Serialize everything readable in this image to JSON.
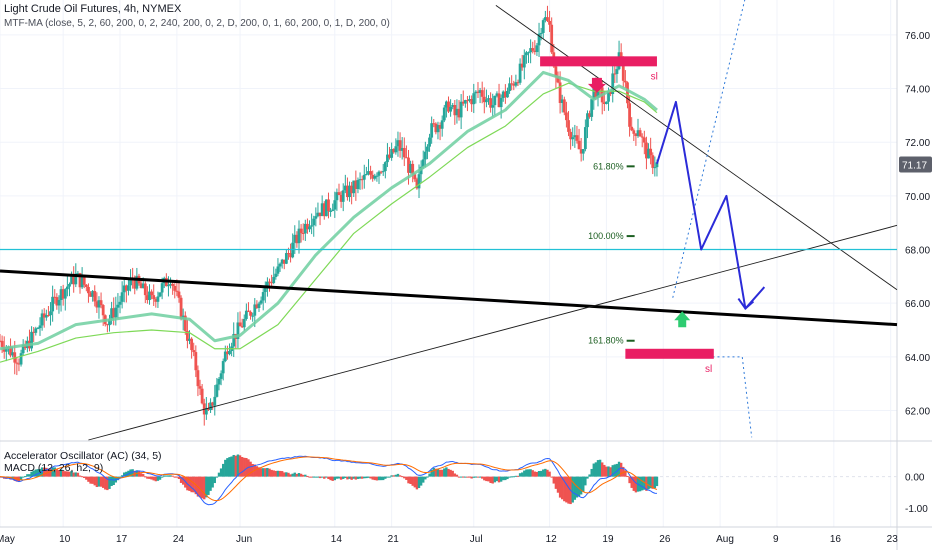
{
  "header": {
    "title": "Light Crude Oil Futures, 4h, NYMEX",
    "indicator": "MTF-MA (close, 5, 2, 60, 200, 0, 2, 240, 200, 0, 2, D, 200, 0, 1, 60, 200, 0, 1, D, 200, 0)"
  },
  "subpanel": {
    "ac_label": "Accelerator Oscillator (AC) (34, 5)",
    "macd_label": "MACD (12, 26, h2, 9)"
  },
  "chart_data": {
    "type": "candlestick",
    "title": "Light Crude Oil Futures, 4h, NYMEX",
    "x_tick_labels": [
      "May",
      "10",
      "17",
      "24",
      "Jun",
      "14",
      "21",
      "Jul",
      "12",
      "19",
      "26",
      "Aug",
      "9",
      "16",
      "23"
    ],
    "y_tick_labels": [
      "62.00",
      "64.00",
      "66.00",
      "68.00",
      "70.00",
      "72.00",
      "74.00",
      "76.00"
    ],
    "ylim": [
      60.9,
      77.3
    ],
    "current_price": "71.17",
    "price_path": [
      [
        0,
        64.6
      ],
      [
        3,
        63.9
      ],
      [
        6,
        65.1
      ],
      [
        9,
        66.2
      ],
      [
        12,
        67.0
      ],
      [
        15,
        66.3
      ],
      [
        17,
        65.3
      ],
      [
        19,
        66.1
      ],
      [
        21,
        66.9
      ],
      [
        24,
        66.1
      ],
      [
        27,
        67.0
      ],
      [
        29,
        65.4
      ],
      [
        31,
        63.6
      ],
      [
        32,
        62.2
      ],
      [
        33,
        61.8
      ],
      [
        34,
        62.6
      ],
      [
        36,
        64.4
      ],
      [
        38,
        65.1
      ],
      [
        40,
        65.8
      ],
      [
        42,
        66.6
      ],
      [
        44,
        67.2
      ],
      [
        46,
        68.0
      ],
      [
        48,
        68.8
      ],
      [
        50,
        69.4
      ],
      [
        52,
        69.6
      ],
      [
        54,
        70.0
      ],
      [
        56,
        70.3
      ],
      [
        58,
        70.7
      ],
      [
        60,
        71.0
      ],
      [
        62,
        71.5
      ],
      [
        63,
        71.9
      ],
      [
        64,
        71.5
      ],
      [
        65,
        70.9
      ],
      [
        66,
        70.1
      ],
      [
        67,
        71.6
      ],
      [
        68,
        72.4
      ],
      [
        69,
        72.6
      ],
      [
        70,
        72.9
      ],
      [
        71,
        73.4
      ],
      [
        72,
        73.0
      ],
      [
        74,
        73.5
      ],
      [
        76,
        73.9
      ],
      [
        78,
        73.4
      ],
      [
        80,
        73.8
      ],
      [
        82,
        74.5
      ],
      [
        84,
        75.4
      ],
      [
        85,
        75.7
      ],
      [
        86,
        76.7
      ],
      [
        87,
        76.3
      ],
      [
        88,
        74.3
      ],
      [
        89,
        73.4
      ],
      [
        90,
        72.6
      ],
      [
        91,
        72.0
      ],
      [
        92,
        71.6
      ],
      [
        93,
        72.8
      ],
      [
        94,
        74.0
      ],
      [
        95,
        73.8
      ],
      [
        96,
        73.3
      ],
      [
        97,
        74.4
      ],
      [
        98,
        75.1
      ],
      [
        99,
        74.2
      ],
      [
        100,
        72.2
      ],
      [
        101,
        72.6
      ],
      [
        102,
        71.8
      ],
      [
        103,
        71.3
      ],
      [
        104,
        71.17
      ]
    ],
    "ma_fast": [
      [
        0,
        64.3
      ],
      [
        6,
        64.5
      ],
      [
        12,
        65.2
      ],
      [
        18,
        65.4
      ],
      [
        24,
        65.6
      ],
      [
        30,
        65.4
      ],
      [
        34,
        64.6
      ],
      [
        38,
        64.8
      ],
      [
        44,
        66.0
      ],
      [
        50,
        67.8
      ],
      [
        56,
        69.2
      ],
      [
        62,
        70.3
      ],
      [
        68,
        71.2
      ],
      [
        74,
        72.4
      ],
      [
        80,
        73.2
      ],
      [
        86,
        74.6
      ],
      [
        90,
        74.3
      ],
      [
        94,
        73.6
      ],
      [
        98,
        74.1
      ],
      [
        102,
        73.6
      ],
      [
        104,
        73.2
      ]
    ],
    "ma_slow": [
      [
        0,
        63.8
      ],
      [
        6,
        64.2
      ],
      [
        12,
        64.7
      ],
      [
        18,
        64.9
      ],
      [
        24,
        65.0
      ],
      [
        30,
        64.9
      ],
      [
        34,
        64.3
      ],
      [
        38,
        64.3
      ],
      [
        44,
        65.2
      ],
      [
        50,
        66.9
      ],
      [
        56,
        68.6
      ],
      [
        62,
        69.7
      ],
      [
        68,
        70.7
      ],
      [
        74,
        71.8
      ],
      [
        80,
        72.6
      ],
      [
        86,
        73.8
      ],
      [
        90,
        74.2
      ],
      [
        94,
        73.9
      ],
      [
        98,
        73.9
      ],
      [
        102,
        73.5
      ],
      [
        104,
        73.1
      ]
    ],
    "fib_levels": [
      {
        "label": "61.80%",
        "price": 71.1
      },
      {
        "label": "100.00%",
        "price": 68.5
      },
      {
        "label": "161.80%",
        "price": 64.6
      }
    ],
    "horizontal_level": 68.0,
    "projection_path": [
      [
        104,
        71.2
      ],
      [
        107,
        73.5
      ],
      [
        111,
        68.0
      ],
      [
        115,
        70.0
      ],
      [
        118,
        65.8
      ],
      [
        121,
        66.6
      ]
    ],
    "sl_labels": [
      "sl",
      "sl"
    ],
    "oscillator_ticks": [
      "0.00",
      "-1.00"
    ],
    "grid": true,
    "legend": "top-left"
  }
}
